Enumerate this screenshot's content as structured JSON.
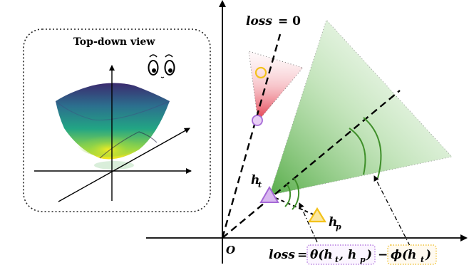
{
  "inset": {
    "title": "Top-down view"
  },
  "labels": {
    "loss_zero_lhs": "loss",
    "loss_zero_eq": "= 0",
    "origin": "O",
    "h_t": "h",
    "h_t_sub": "t",
    "h_p": "h",
    "h_p_sub": "p"
  },
  "formula": {
    "lhs": "loss",
    "eq": " =",
    "theta": "θ(h",
    "theta_sub1": "t",
    "theta_mid": ", h",
    "theta_sub2": "p",
    "theta_end": ")",
    "minus": "−",
    "phi": "ϕ(h",
    "phi_sub": "t",
    "phi_end": ")"
  },
  "colors": {
    "axis": "#000000",
    "green_cone": "#46a832",
    "green_arc": "#3f8f2a",
    "red_cone": "#e03a4a",
    "purple": "#a569d6",
    "yellow": "#f3c21b",
    "theta_box": "#b57be0",
    "phi_box": "#f0c030"
  }
}
